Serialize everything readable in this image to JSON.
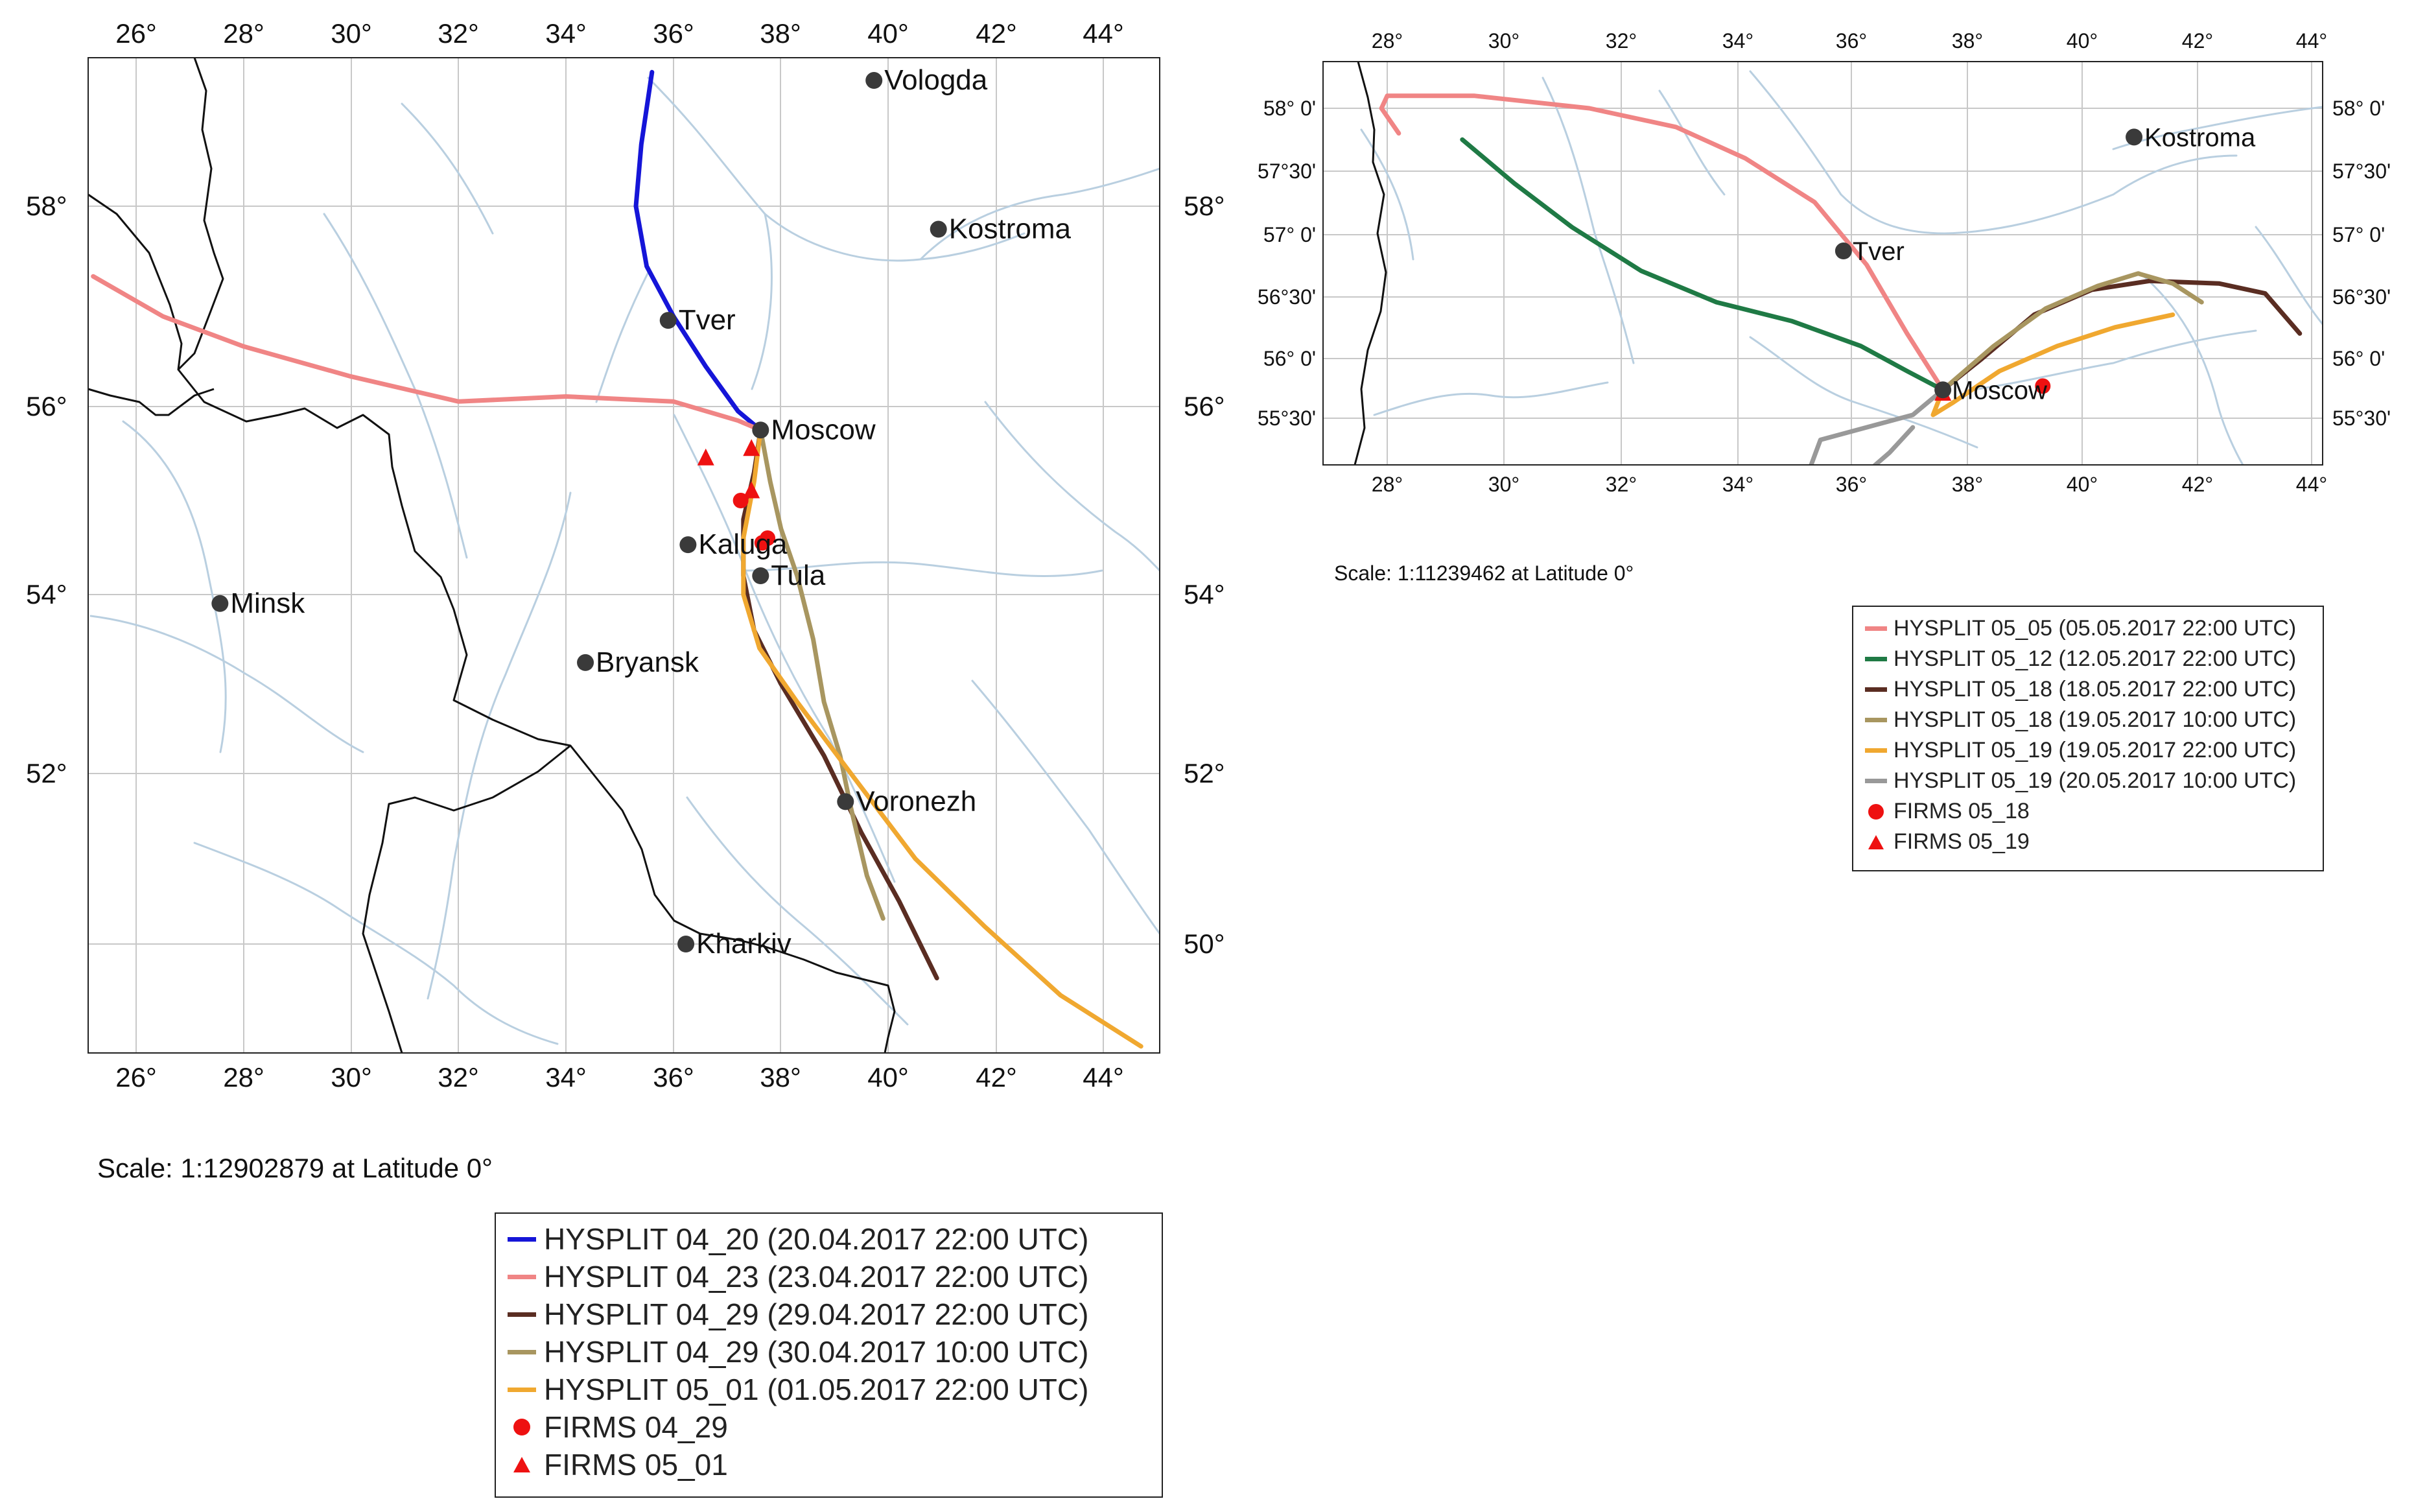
{
  "maps": [
    {
      "id": "map1",
      "lon_ticks": [
        "26°",
        "28°",
        "30°",
        "32°",
        "34°",
        "36°",
        "38°",
        "40°",
        "42°",
        "44°"
      ],
      "lat_ticks_right": [
        "58°",
        "56°",
        "54°",
        "52°",
        "50°"
      ],
      "lat_ticks_left": [
        "58°",
        "56°",
        "54°",
        "52°"
      ],
      "cities": [
        "Vologda",
        "Kostroma",
        "Tver",
        "Moscow",
        "Kaluga",
        "Tula",
        "Minsk",
        "Bryansk",
        "Voronezh",
        "Kharkiv"
      ],
      "scale_text": "Scale:  1:12902879 at Latitude 0°",
      "legend": [
        {
          "kind": "line",
          "label": "HYSPLIT 04_20 (20.04.2017 22:00 UTC)",
          "color": "#1515d8"
        },
        {
          "kind": "line",
          "label": "HYSPLIT 04_23 (23.04.2017 22:00 UTC)",
          "color": "#f08585"
        },
        {
          "kind": "line",
          "label": "HYSPLIT 04_29 (29.04.2017 22:00 UTC)",
          "color": "#5a2d22"
        },
        {
          "kind": "line",
          "label": "HYSPLIT 04_29 (30.04.2017 10:00 UTC)",
          "color": "#a89660"
        },
        {
          "kind": "line",
          "label": "HYSPLIT 05_01 (01.05.2017 22:00 UTC)",
          "color": "#f0a830"
        },
        {
          "kind": "dot",
          "label": "FIRMS 04_29",
          "color": "#ee1111"
        },
        {
          "kind": "triangle",
          "label": "FIRMS 05_01",
          "color": "#ee1111"
        }
      ]
    },
    {
      "id": "map2",
      "lon_ticks": [
        "28°",
        "30°",
        "32°",
        "34°",
        "36°",
        "38°",
        "40°",
        "42°",
        "44°"
      ],
      "lat_ticks_left": [
        "58° 0'",
        "57°30'",
        "57° 0'",
        "56°30'",
        "56° 0'",
        "55°30'"
      ],
      "lat_ticks_right": [
        "58° 0'",
        "57°30'",
        "57° 0'",
        "56°30'",
        "56° 0'",
        "55°30'"
      ],
      "cities": [
        "Kostroma",
        "Tver",
        "Moscow"
      ],
      "scale_text": "Scale:  1:11239462 at Latitude 0°",
      "legend": [
        {
          "kind": "line",
          "label": "HYSPLIT 05_05 (05.05.2017 22:00 UTC)",
          "color": "#f08585"
        },
        {
          "kind": "line",
          "label": "HYSPLIT 05_12 (12.05.2017 22:00 UTC)",
          "color": "#1f7a45"
        },
        {
          "kind": "line",
          "label": "HYSPLIT 05_18 (18.05.2017 22:00 UTC)",
          "color": "#5a2d22"
        },
        {
          "kind": "line",
          "label": "HYSPLIT 05_18 (19.05.2017 10:00 UTC)",
          "color": "#a89660"
        },
        {
          "kind": "line",
          "label": "HYSPLIT 05_19 (19.05.2017 22:00 UTC)",
          "color": "#f0a830"
        },
        {
          "kind": "line",
          "label": "HYSPLIT 05_19 (20.05.2017 10:00 UTC)",
          "color": "#999999"
        },
        {
          "kind": "dot",
          "label": "FIRMS 05_18",
          "color": "#ee1111"
        },
        {
          "kind": "triangle",
          "label": "FIRMS 05_19",
          "color": "#ee1111"
        }
      ]
    }
  ]
}
